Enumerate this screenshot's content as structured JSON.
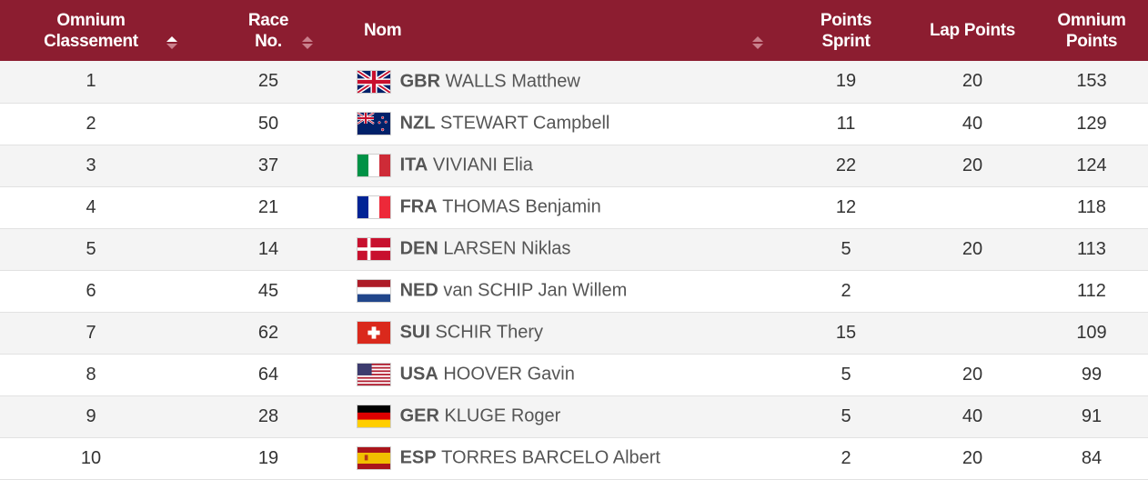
{
  "colors": {
    "header_bg": "#8c1d30",
    "row_alt": "#f4f4f4"
  },
  "header": {
    "rank_line1": "Omnium",
    "rank_line2": "Classement",
    "race_line1": "Race",
    "race_line2": "No.",
    "name": "Nom",
    "sprint_line1": "Points",
    "sprint_line2": "Sprint",
    "lap": "Lap Points",
    "total_line1": "Omnium",
    "total_line2": "Points"
  },
  "rows": [
    {
      "rank": "1",
      "race_no": "25",
      "flag": "gbr-flag-icon",
      "noc": "GBR",
      "name": "WALLS Matthew",
      "sprint": "19",
      "lap": "20",
      "total": "153"
    },
    {
      "rank": "2",
      "race_no": "50",
      "flag": "nzl-flag-icon",
      "noc": "NZL",
      "name": "STEWART Campbell",
      "sprint": "11",
      "lap": "40",
      "total": "129"
    },
    {
      "rank": "3",
      "race_no": "37",
      "flag": "ita-flag-icon",
      "noc": "ITA",
      "name": "VIVIANI Elia",
      "sprint": "22",
      "lap": "20",
      "total": "124"
    },
    {
      "rank": "4",
      "race_no": "21",
      "flag": "fra-flag-icon",
      "noc": "FRA",
      "name": "THOMAS Benjamin",
      "sprint": "12",
      "lap": "",
      "total": "118"
    },
    {
      "rank": "5",
      "race_no": "14",
      "flag": "den-flag-icon",
      "noc": "DEN",
      "name": "LARSEN Niklas",
      "sprint": "5",
      "lap": "20",
      "total": "113"
    },
    {
      "rank": "6",
      "race_no": "45",
      "flag": "ned-flag-icon",
      "noc": "NED",
      "name": "van SCHIP Jan Willem",
      "sprint": "2",
      "lap": "",
      "total": "112"
    },
    {
      "rank": "7",
      "race_no": "62",
      "flag": "sui-flag-icon",
      "noc": "SUI",
      "name": "SCHIR Thery",
      "sprint": "15",
      "lap": "",
      "total": "109"
    },
    {
      "rank": "8",
      "race_no": "64",
      "flag": "usa-flag-icon",
      "noc": "USA",
      "name": "HOOVER Gavin",
      "sprint": "5",
      "lap": "20",
      "total": "99"
    },
    {
      "rank": "9",
      "race_no": "28",
      "flag": "ger-flag-icon",
      "noc": "GER",
      "name": "KLUGE Roger",
      "sprint": "5",
      "lap": "40",
      "total": "91"
    },
    {
      "rank": "10",
      "race_no": "19",
      "flag": "esp-flag-icon",
      "noc": "ESP",
      "name": "TORRES BARCELO Albert",
      "sprint": "2",
      "lap": "20",
      "total": "84"
    }
  ]
}
